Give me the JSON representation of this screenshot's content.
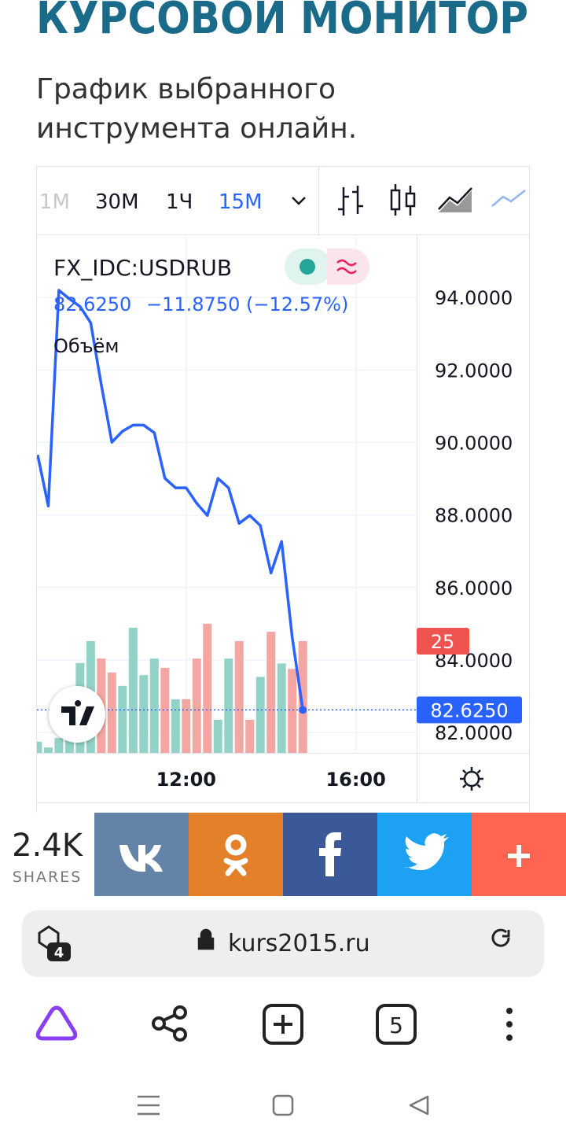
{
  "header": {
    "title": "КУРСОВОЙ МОНИТОР",
    "subtitle_lines": [
      "График выбранного",
      "инструмента онлайн."
    ]
  },
  "toolbar": {
    "intervals": [
      "1M",
      "30M",
      "1Ч",
      "15M"
    ]
  },
  "chart_data": {
    "type": "line",
    "legend": {
      "price": "82.6250",
      "change": "−11.8750 (−12.57%)"
    },
    "x": [
      "08:30",
      "08:45",
      "09:00",
      "09:15",
      "09:30",
      "09:45",
      "10:00",
      "10:15",
      "10:30",
      "10:45",
      "11:00",
      "11:15",
      "11:30",
      "11:45",
      "12:00",
      "12:15",
      "12:30",
      "12:45",
      "13:00",
      "13:15",
      "13:30",
      "13:45",
      "14:00",
      "14:15",
      "14:30",
      "14:45"
    ],
    "series": [
      {
        "name": "FX_IDC:USDRUB",
        "color": "#2962ff",
        "values": [
          89.66,
          88.25,
          94.2,
          93.96,
          93.75,
          93.3,
          91.6,
          90.01,
          90.31,
          90.48,
          90.48,
          90.27,
          89.01,
          88.75,
          88.75,
          88.32,
          87.99,
          89.01,
          88.75,
          87.77,
          87.99,
          87.71,
          86.4,
          87.27,
          84.63,
          82.625
        ]
      },
      {
        "name": "Объём",
        "type": "bar",
        "axis": "y2",
        "last_label_color": "#ef5350",
        "values": [
          2.5,
          1.2,
          3.3,
          3.0,
          20.1,
          25,
          21.1,
          18,
          15,
          28,
          17.4,
          21.1,
          19,
          12,
          12,
          21.1,
          28.9,
          7.4,
          21.1,
          25,
          7.4,
          17,
          27.1,
          20,
          18.8,
          25
        ],
        "colors": [
          "#93d2c6",
          "#93d2c6",
          "#93d2c6",
          "#93d2c6",
          "#93d2c6",
          "#93d2c6",
          "#f4a6a3",
          "#f4a6a3",
          "#93d2c6",
          "#93d2c6",
          "#93d2c6",
          "#93d2c6",
          "#f4a6a3",
          "#93d2c6",
          "#f4a6a3",
          "#f4a6a3",
          "#f4a6a3",
          "#93d2c6",
          "#93d2c6",
          "#f4a6a3",
          "#f4a6a3",
          "#93d2c6",
          "#f4a6a3",
          "#93d2c6",
          "#f4a6a3",
          "#f4a6a3"
        ]
      }
    ],
    "xlim": [
      "08:29",
      "17:26"
    ],
    "xticks": [
      "12:00",
      "16:00"
    ],
    "ylim": [
      81.44,
      95.74
    ],
    "yticks": [
      {
        "value": 82,
        "label": "82.0000"
      },
      {
        "value": 84,
        "label": "84.0000"
      },
      {
        "value": 86,
        "label": "86.0000"
      },
      {
        "value": 88,
        "label": "88.0000"
      },
      {
        "value": 90,
        "label": "90.0000"
      },
      {
        "value": 92,
        "label": "92.0000"
      },
      {
        "value": 94,
        "label": "94.0000"
      }
    ],
    "y2lim": [
      0,
      116
    ],
    "grid": true
  },
  "share": {
    "count": "2.4K",
    "label": "SHARES"
  },
  "browser": {
    "url": "kurs2015.ru",
    "tabs_badge": "4",
    "tab_count": "5"
  }
}
